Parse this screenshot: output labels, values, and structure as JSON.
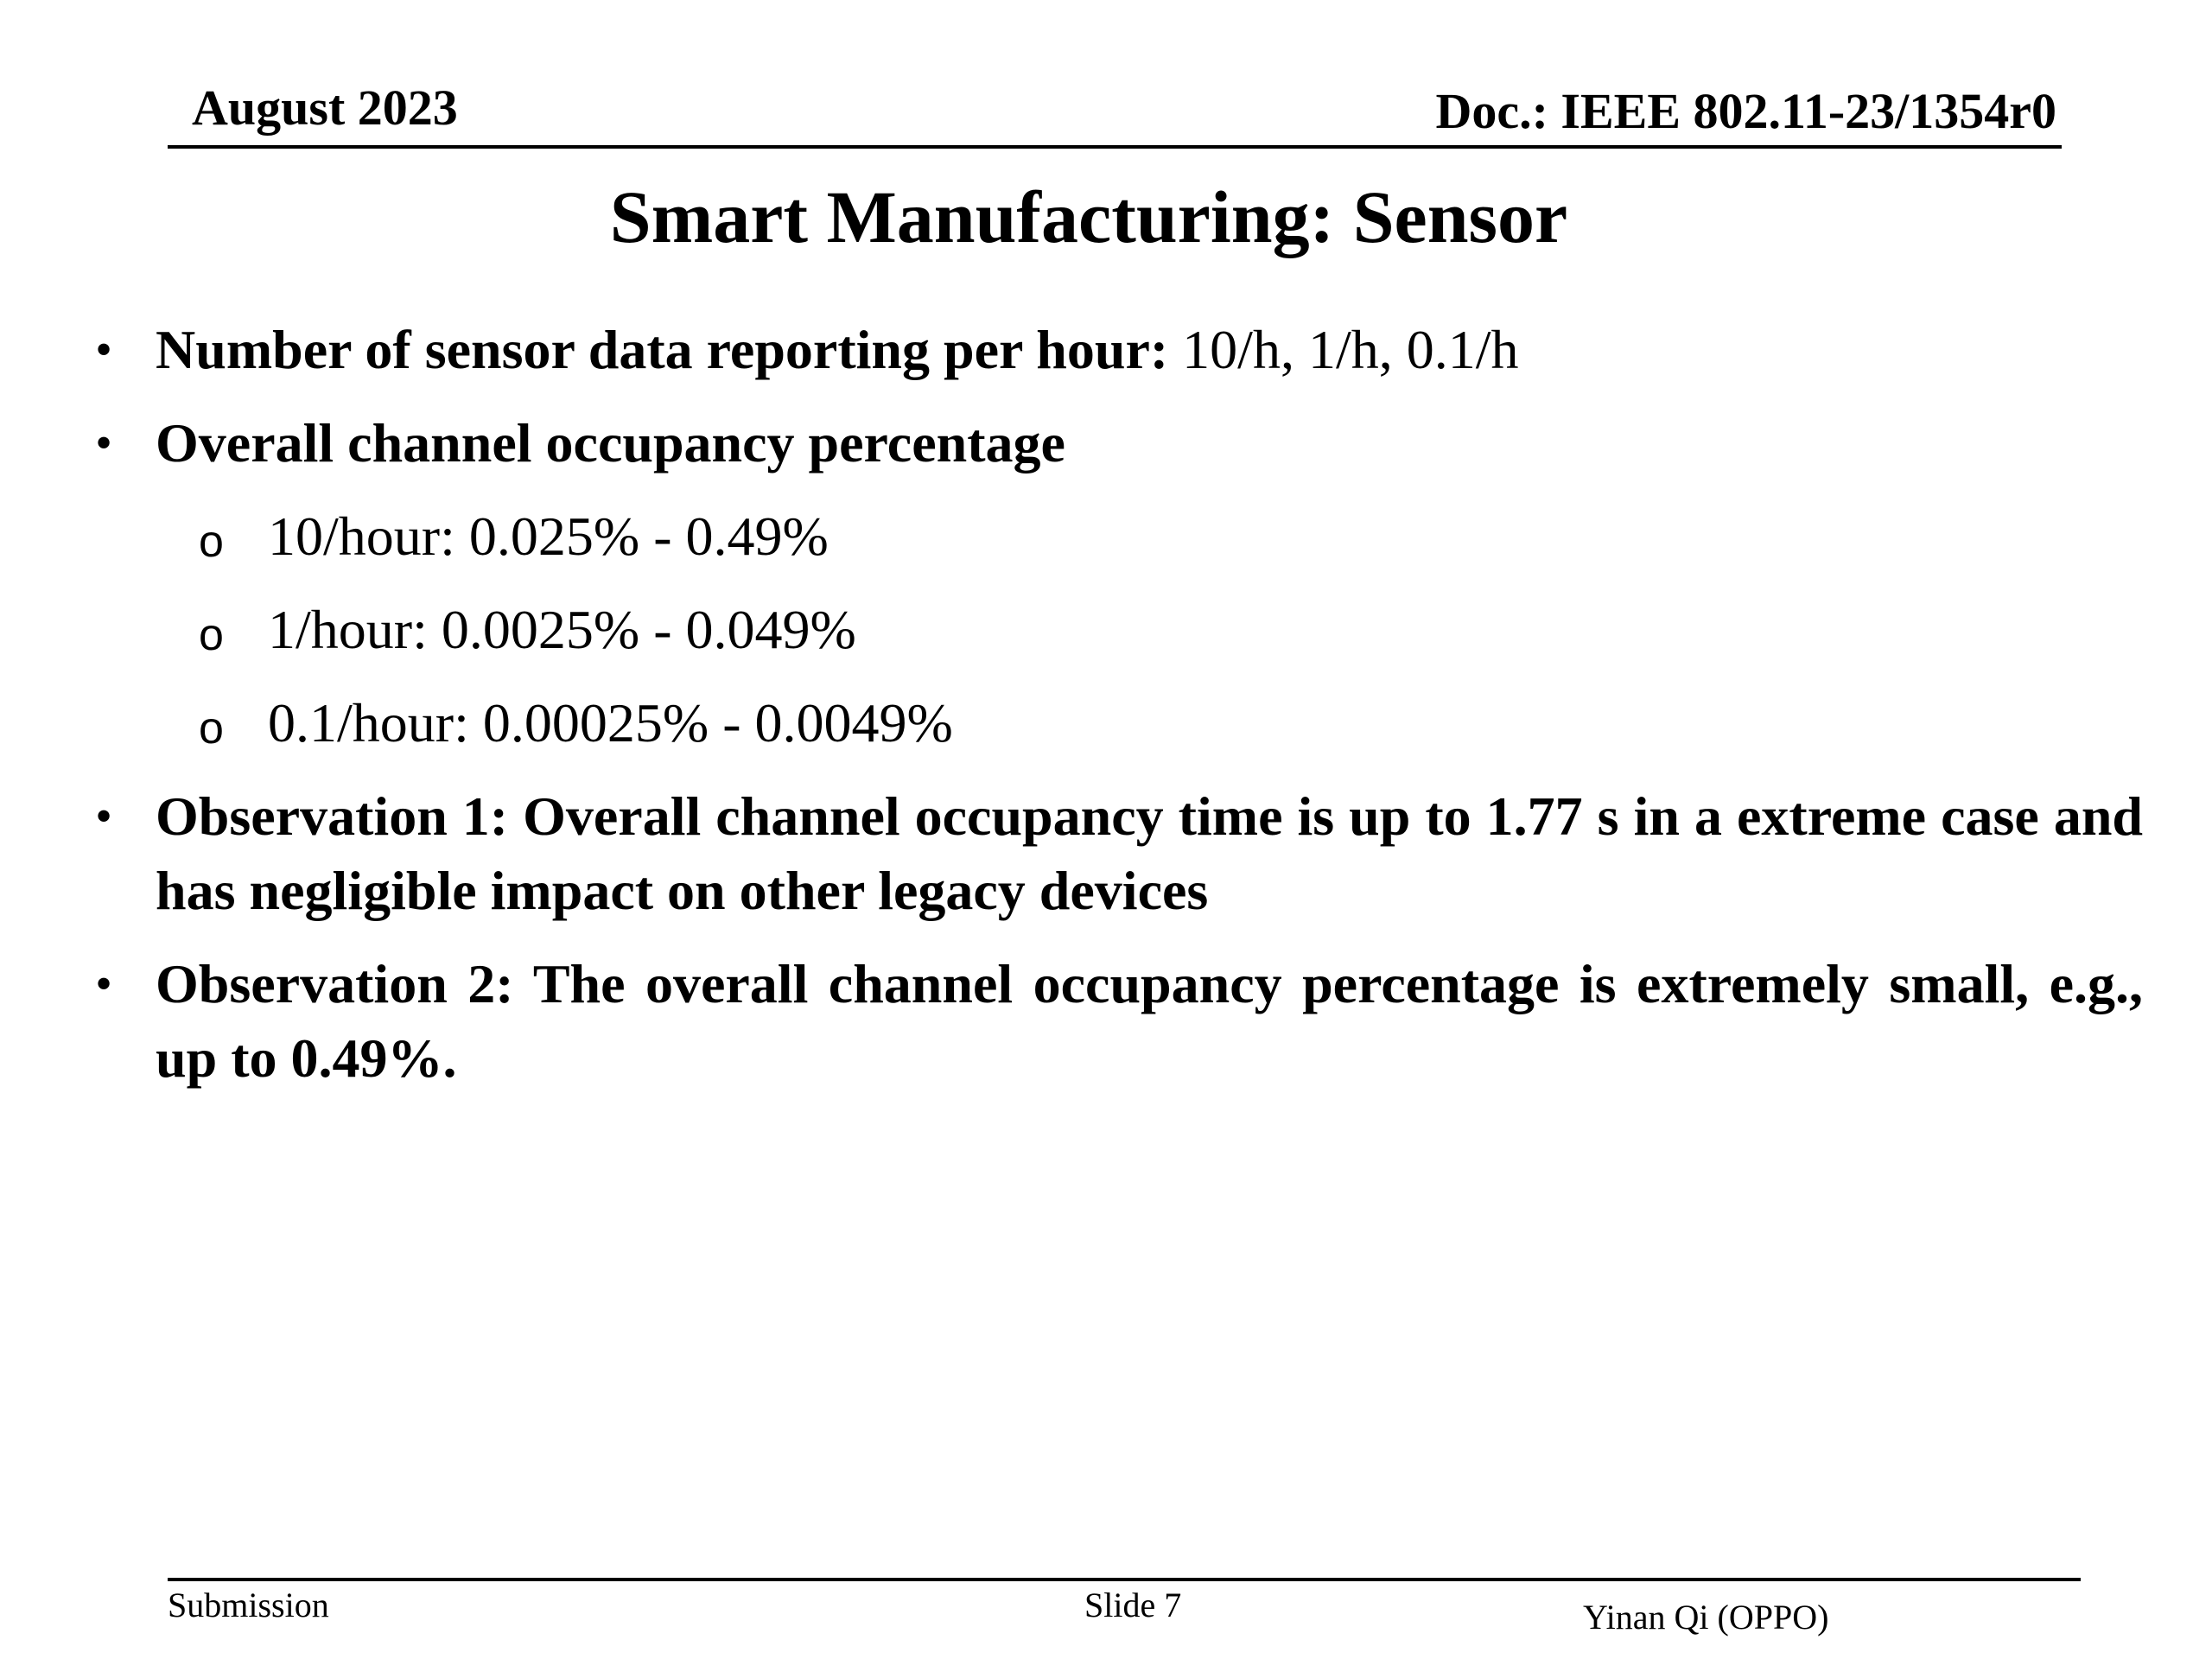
{
  "header": {
    "date": "August 2023",
    "doc_id": "Doc.: IEEE 802.11-23/1354r0"
  },
  "slide": {
    "title": "Smart Manufacturing: Sensor",
    "bullets": [
      {
        "bold": "Number of sensor data reporting per hour:",
        "normal": " 10/h, 1/h, 0.1/h"
      },
      {
        "bold": "Overall channel occupancy percentage",
        "subitems": [
          "10/hour: 0.025% - 0.49%",
          "1/hour: 0.0025% - 0.049%",
          "0.1/hour: 0.00025% - 0.0049%"
        ]
      },
      {
        "bold": "Observation 1: Overall channel occupancy time is up to 1.77 s in a extreme case and has negligible impact on other legacy devices"
      },
      {
        "bold": "Observation 2: The overall channel occupancy percentage is extremely small, e.g., up to 0.49%."
      }
    ],
    "bullet_glyph": "•",
    "sub_glyph": "o"
  },
  "footer": {
    "left": "Submission",
    "center": "Slide 7",
    "right": "Yinan Qi (OPPO)"
  }
}
